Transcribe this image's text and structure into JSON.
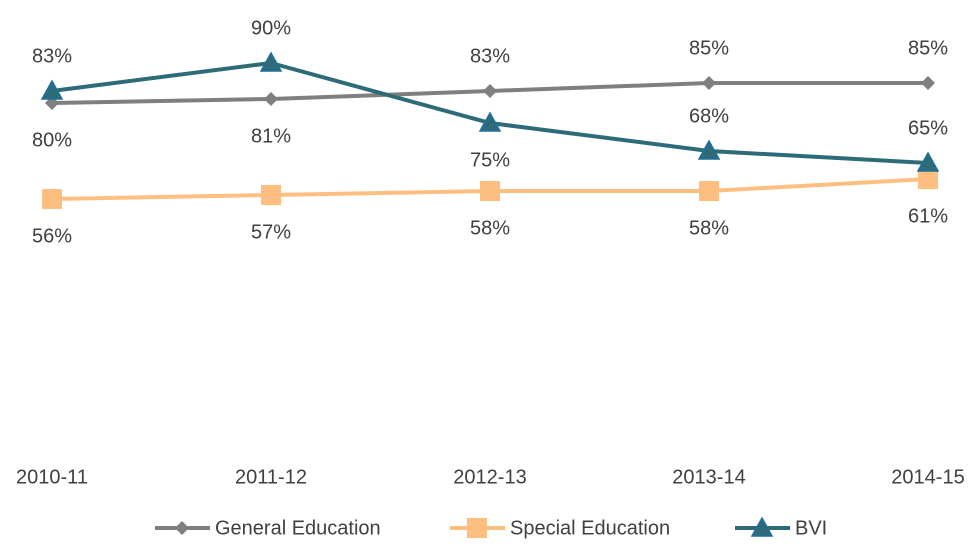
{
  "chart_data": {
    "type": "line",
    "categories": [
      "2010-11",
      "2011-12",
      "2012-13",
      "2013-14",
      "2014-15"
    ],
    "ylim": [
      0,
      100
    ],
    "series": [
      {
        "name": "General Education",
        "color": "#7f7f7f",
        "values": [
          80,
          81,
          83,
          85,
          85
        ],
        "value_labels": [
          "80%",
          "81%",
          "83%",
          "85%",
          "85%"
        ]
      },
      {
        "name": "Special Education",
        "color": "#fdbf80",
        "values": [
          56,
          57,
          58,
          58,
          61
        ],
        "value_labels": [
          "56%",
          "57%",
          "58%",
          "58%",
          "61%"
        ]
      },
      {
        "name": "BVI",
        "color": "#2e6b78",
        "values": [
          83,
          90,
          75,
          68,
          65
        ],
        "value_labels": [
          "83%",
          "90%",
          "75%",
          "68%",
          "65%"
        ]
      }
    ]
  }
}
